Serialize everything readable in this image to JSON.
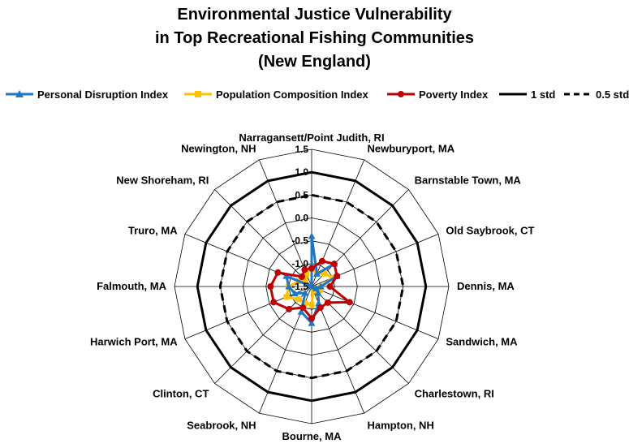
{
  "chart_data": {
    "type": "radar",
    "title": [
      "Environmental Justice Vulnerability",
      "in Top Recreational Fishing Communities",
      "(New England)"
    ],
    "categories": [
      "Narragansett/Point Judith, RI",
      "Newburyport, MA",
      "Barnstable Town, MA",
      "Old Saybrook, CT",
      "Dennis, MA",
      "Sandwich, MA",
      "Charlestown, RI",
      "Hampton, NH",
      "Bourne, MA",
      "Seabrook, NH",
      "Clinton, CT",
      "Harwich Port, MA",
      "Falmouth, MA",
      "Truro, MA",
      "New Shoreham, RI",
      "Newington, NH"
    ],
    "rlim": [
      -1.5,
      1.5
    ],
    "ticks": [
      -1.5,
      -1.0,
      -0.5,
      0.0,
      0.5,
      1.0,
      1.5
    ],
    "tick_labels": [
      "-1.5",
      "-1.0",
      "-0.5",
      "0.0",
      "0.5",
      "1.0",
      "1.5"
    ],
    "series": [
      {
        "name": "Personal Disruption Index",
        "color": "#1f77c4",
        "marker": "triangle",
        "values": [
          -0.4,
          -1.2,
          -0.8,
          -0.9,
          -1.3,
          -1.4,
          -1.3,
          -1.1,
          -0.7,
          -0.9,
          -1.3,
          -1.1,
          -1.0,
          -0.9,
          -1.5,
          -1.5
        ]
      },
      {
        "name": "Population Composition Index",
        "color": "#ffc000",
        "marker": "square",
        "values": [
          -1.1,
          -1.2,
          -1.1,
          -1.0,
          -1.3,
          -1.3,
          -1.3,
          -1.4,
          -1.1,
          -1.1,
          -1.1,
          -0.9,
          -1.0,
          -1.2,
          -1.3,
          -1.2
        ]
      },
      {
        "name": "Poverty Index",
        "color": "#c00000",
        "marker": "circle",
        "values": [
          -1.1,
          -0.9,
          -0.8,
          -0.9,
          -1.1,
          -0.6,
          -1.0,
          -1.0,
          -0.8,
          -1.0,
          -0.8,
          -0.6,
          -0.6,
          -0.7,
          -1.2,
          -1.1
        ]
      },
      {
        "name": "1 std",
        "color": "#000000",
        "line": "solid",
        "values": [
          1,
          1,
          1,
          1,
          1,
          1,
          1,
          1,
          1,
          1,
          1,
          1,
          1,
          1,
          1,
          1
        ]
      },
      {
        "name": "0.5 std",
        "color": "#000000",
        "line": "dashed",
        "values": [
          0.5,
          0.5,
          0.5,
          0.5,
          0.5,
          0.5,
          0.5,
          0.5,
          0.5,
          0.5,
          0.5,
          0.5,
          0.5,
          0.5,
          0.5,
          0.5
        ]
      }
    ],
    "legend_position": "top",
    "grid": true
  }
}
